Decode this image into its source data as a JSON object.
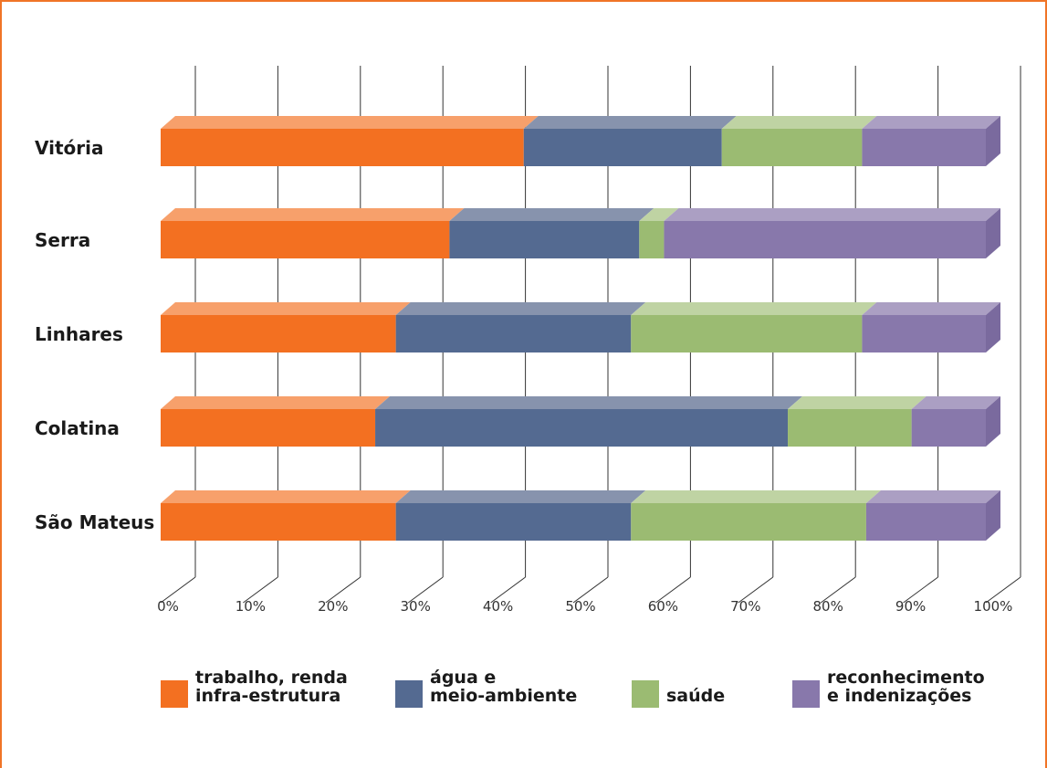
{
  "chart_data": {
    "type": "bar",
    "orientation": "horizontal",
    "stacked": "100%",
    "categories": [
      "Vitória",
      "Serra",
      "Linhares",
      "Colatina",
      "São Mateus"
    ],
    "series": [
      {
        "name": "trabalho, renda infra-estrutura",
        "color": "#f37021",
        "top_color": "#f7a06b",
        "values": [
          44,
          35,
          28.5,
          26,
          28.5
        ]
      },
      {
        "name": "água e meio-ambiente",
        "color": "#546a91",
        "top_color": "#8793ad",
        "values": [
          24,
          23,
          28.5,
          50,
          28.5
        ]
      },
      {
        "name": "saúde",
        "color": "#9bbb72",
        "top_color": "#bfd3a3",
        "values": [
          17,
          3,
          28,
          15,
          28.5
        ]
      },
      {
        "name": "reconhecimento e indenizações",
        "color": "#8878ab",
        "top_color": "#ab9fc3",
        "values": [
          15,
          39,
          15,
          9,
          14.5
        ]
      }
    ],
    "xlim": [
      0,
      100
    ],
    "x_ticks": [
      "0%",
      "10%",
      "20%",
      "30%",
      "40%",
      "50%",
      "60%",
      "70%",
      "80%",
      "90%",
      "100%"
    ],
    "grid": true,
    "legend_position": "bottom"
  },
  "legend": [
    {
      "line1": "trabalho, renda",
      "line2": "infra-estrutura",
      "color": "#f37021"
    },
    {
      "line1": "água e",
      "line2": "meio-ambiente",
      "color": "#546a91"
    },
    {
      "line1": "",
      "line2": "saúde",
      "color": "#9bbb72"
    },
    {
      "line1": "reconhecimento",
      "line2": "e indenizações",
      "color": "#8878ab"
    }
  ],
  "frame_color": "#f07427"
}
